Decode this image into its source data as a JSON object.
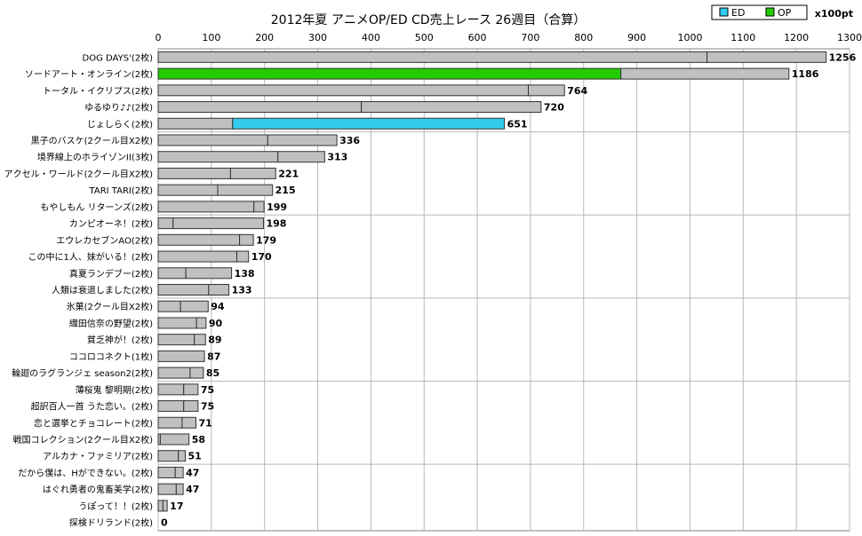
{
  "chart_data": {
    "type": "bar",
    "orientation": "horizontal",
    "stacked": true,
    "title": "2012年夏 アニメOP/ED CD売上レース 26週目（合算）",
    "unit_label": "x100pt",
    "xlim": [
      0,
      1300
    ],
    "x_ticks": [
      0,
      100,
      200,
      300,
      400,
      500,
      600,
      700,
      800,
      900,
      1000,
      1100,
      1200,
      1300
    ],
    "grid": true,
    "legend_position": "top-right",
    "legend": [
      {
        "name": "ED",
        "color": "#33ccee"
      },
      {
        "name": "OP",
        "color": "#22cc00"
      }
    ],
    "colors": {
      "default": "#c0c0c0",
      "ED": "#33ccee",
      "OP": "#22cc00",
      "border": "#333333",
      "grid": "#b8b8b8"
    },
    "categories": [
      "DOG DAYS'(2枚)",
      "ソードアート・オンライン(2枚)",
      "トータル・イクリプス(2枚)",
      "ゆるゆり♪♪(2枚)",
      "じょしらく(2枚)",
      "黒子のバスケ(2クール目X2枚)",
      "境界線上のホライゾンII(3枚)",
      "アクセル・ワールド(2クール目X2枚)",
      "TARI TARI(2枚)",
      "もやしもん リターンズ(2枚)",
      "カンピオーネ！(2枚)",
      "エウレカセブンAO(2枚)",
      "この中に1人、妹がいる！(2枚)",
      "真夏ランデブー(2枚)",
      "人類は衰退しました(2枚)",
      "氷菓(2クール目X2枚)",
      "織田信奈の野望(2枚)",
      "貧乏神が！(2枚)",
      "ココロコネクト(1枚)",
      "輪廻のラグランジェ season2(2枚)",
      "薄桜鬼 黎明期(2枚)",
      "超訳百人一首 うた恋い。(2枚)",
      "恋と選挙とチョコレート(2枚)",
      "戦国コレクション(2クール目X2枚)",
      "アルカナ・ファミリア(2枚)",
      "だから僕は、Hができない。(2枚)",
      "はぐれ勇者の鬼畜美学(2枚)",
      "うぽって！！(2枚)",
      "探検ドリランド(2枚)"
    ],
    "series": [
      {
        "values": [
          1032,
          870,
          696,
          382,
          140,
          206,
          225,
          136,
          112,
          180,
          28,
          153,
          148,
          52,
          95,
          42,
          72,
          68,
          87,
          60,
          48,
          48,
          45,
          4,
          38,
          32,
          34,
          9,
          0
        ]
      },
      {
        "values": [
          224,
          316,
          68,
          338,
          511,
          130,
          88,
          85,
          103,
          19,
          170,
          26,
          22,
          86,
          38,
          52,
          18,
          21,
          0,
          25,
          27,
          27,
          26,
          54,
          13,
          15,
          13,
          8,
          0
        ]
      }
    ],
    "segment_colors": [
      [
        "default",
        "default"
      ],
      [
        "OP",
        "default"
      ],
      [
        "default",
        "default"
      ],
      [
        "default",
        "default"
      ],
      [
        "default",
        "ED"
      ],
      [
        "default",
        "default"
      ],
      [
        "default",
        "default"
      ],
      [
        "default",
        "default"
      ],
      [
        "default",
        "default"
      ],
      [
        "default",
        "default"
      ],
      [
        "default",
        "default"
      ],
      [
        "default",
        "default"
      ],
      [
        "default",
        "default"
      ],
      [
        "default",
        "default"
      ],
      [
        "default",
        "default"
      ],
      [
        "default",
        "default"
      ],
      [
        "default",
        "default"
      ],
      [
        "default",
        "default"
      ],
      [
        "default",
        "default"
      ],
      [
        "default",
        "default"
      ],
      [
        "default",
        "default"
      ],
      [
        "default",
        "default"
      ],
      [
        "default",
        "default"
      ],
      [
        "default",
        "default"
      ],
      [
        "default",
        "default"
      ],
      [
        "default",
        "default"
      ],
      [
        "default",
        "default"
      ],
      [
        "default",
        "default"
      ],
      [
        "default",
        "default"
      ]
    ],
    "totals": [
      1256,
      1186,
      764,
      720,
      651,
      336,
      313,
      221,
      215,
      199,
      198,
      179,
      170,
      138,
      133,
      94,
      90,
      89,
      87,
      85,
      75,
      75,
      71,
      58,
      51,
      47,
      47,
      17,
      0
    ],
    "group_separators_after": [
      4,
      9,
      14,
      19,
      24
    ]
  }
}
